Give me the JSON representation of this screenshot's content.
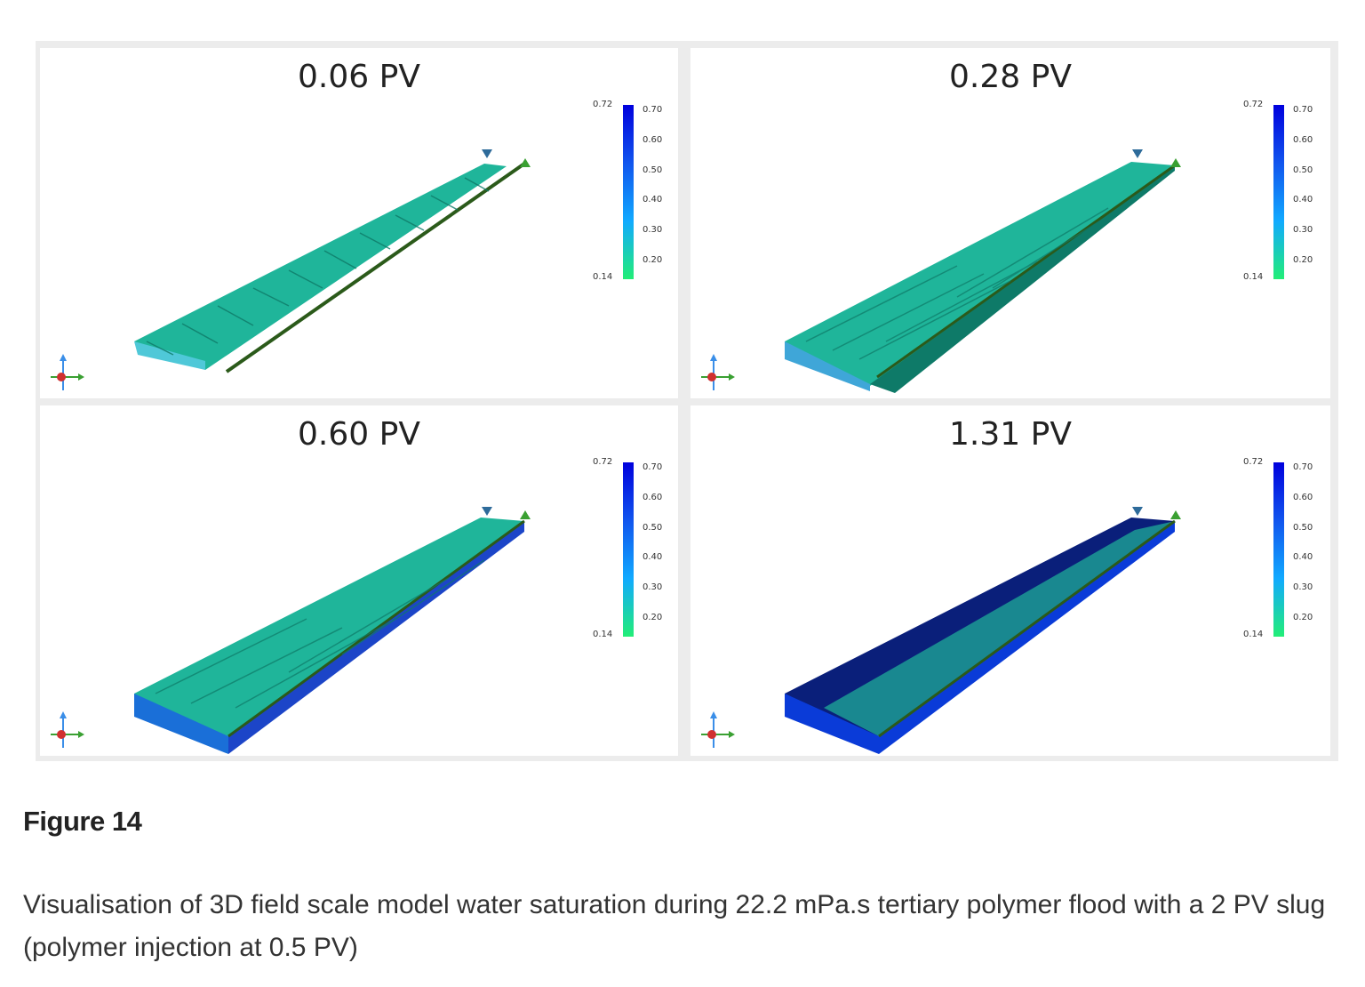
{
  "figure": {
    "label": "Figure 14",
    "caption": "Visualisation of 3D field scale model water saturation during 22.2 mPa.s tertiary polymer flood with a 2 PV slug (polymer injection at 0.5 PV)"
  },
  "colorbar": {
    "min_label": "0.14",
    "max_label": "0.72",
    "ticks": [
      "0.70",
      "0.60",
      "0.50",
      "0.40",
      "0.30",
      "0.20"
    ],
    "range": [
      0.14,
      0.72
    ],
    "colors": {
      "low": "#22ee77",
      "mid": "#11aaff",
      "high": "#0000dd"
    }
  },
  "panels": [
    {
      "title": "0.06 PV",
      "stage": 0
    },
    {
      "title": "0.28 PV",
      "stage": 1
    },
    {
      "title": "0.60 PV",
      "stage": 2
    },
    {
      "title": "1.31 PV",
      "stage": 3
    }
  ],
  "colors": {
    "sweep_green": "#1fb59a",
    "sweep_dark": "#0e7a68",
    "swept_blue": "#0a3bd8",
    "swept_dark": "#0a1f7a",
    "well_line": "#2b5a1a",
    "producer_marker": "#2e6b9a",
    "injector_marker": "#3aa032"
  }
}
